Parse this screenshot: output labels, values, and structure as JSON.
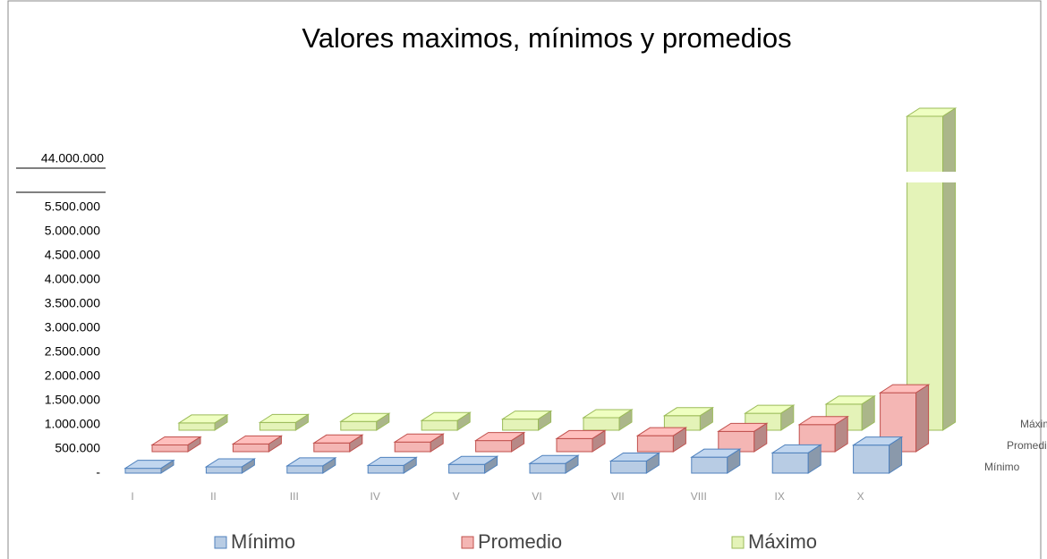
{
  "chart_data": {
    "type": "bar3d",
    "title": "Valores maximos, mínimos y promedios",
    "categories": [
      "I",
      "II",
      "III",
      "IV",
      "V",
      "VI",
      "VII",
      "VIII",
      "IX",
      "X"
    ],
    "series": [
      {
        "name": "Mínimo",
        "color": "#b8cce4",
        "edge": "#4f81bd",
        "values": [
          100000,
          130000,
          150000,
          160000,
          180000,
          200000,
          250000,
          330000,
          420000,
          580000
        ]
      },
      {
        "name": "Promedio",
        "color": "#f4b6b4",
        "edge": "#c0504d",
        "values": [
          140000,
          160000,
          180000,
          200000,
          230000,
          270000,
          330000,
          420000,
          560000,
          1220000
        ]
      },
      {
        "name": "Máximo",
        "color": "#e4f3b8",
        "edge": "#9bbb59",
        "values": [
          150000,
          160000,
          180000,
          200000,
          230000,
          260000,
          300000,
          350000,
          540000,
          44000000
        ]
      }
    ],
    "ylim": [
      0,
      44000000
    ],
    "yticks": [
      {
        "value": 0,
        "label": "-"
      },
      {
        "value": 500000,
        "label": "500.000"
      },
      {
        "value": 1000000,
        "label": "1.000.000"
      },
      {
        "value": 1500000,
        "label": "1.500.000"
      },
      {
        "value": 2000000,
        "label": "2.000.000"
      },
      {
        "value": 2500000,
        "label": "2.500.000"
      },
      {
        "value": 3000000,
        "label": "3.000.000"
      },
      {
        "value": 3500000,
        "label": "3.500.000"
      },
      {
        "value": 4000000,
        "label": "4.000.000"
      },
      {
        "value": 4500000,
        "label": "4.500.000"
      },
      {
        "value": 5000000,
        "label": "5.000.000"
      },
      {
        "value": 5500000,
        "label": "5.500.000"
      },
      {
        "value": 44000000,
        "label": "44.000.000"
      }
    ],
    "legend": "bottom"
  }
}
